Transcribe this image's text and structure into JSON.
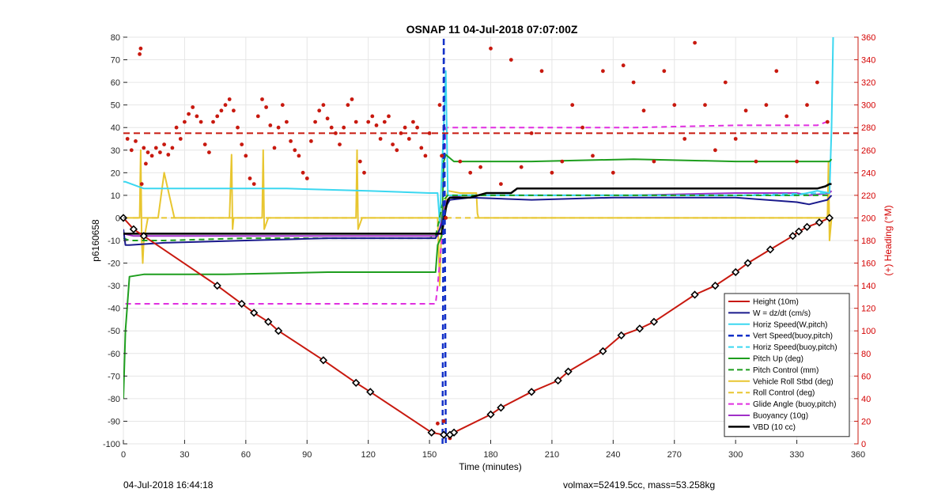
{
  "chart_data": {
    "type": "line",
    "title": "OSNAP 11 04-Jul-2018 07:07:00Z",
    "xlabel": "Time (minutes)",
    "ylabel": "p6160658",
    "ylabel_right": "(+) Heading (°M)",
    "xlim": [
      0,
      360
    ],
    "ylim": [
      -100,
      80
    ],
    "ylim_right": [
      0,
      360
    ],
    "xticks": [
      0,
      30,
      60,
      90,
      120,
      150,
      180,
      210,
      240,
      270,
      300,
      330,
      360
    ],
    "yticks": [
      -100,
      -90,
      -80,
      -70,
      -60,
      -50,
      -40,
      -30,
      -20,
      -10,
      0,
      10,
      20,
      30,
      40,
      50,
      60,
      70,
      80
    ],
    "yticks_right": [
      0,
      20,
      40,
      60,
      80,
      100,
      120,
      140,
      160,
      180,
      200,
      220,
      240,
      260,
      280,
      300,
      320,
      340,
      360
    ],
    "grid": true,
    "legend_position": "bottom-right",
    "footer_left": "04-Jul-2018 16:44:18",
    "footer_right": "volmax=52419.5cc, mass=53.258kg",
    "colors": {
      "red": "#c8190f",
      "navy": "#1a1a8c",
      "cyan": "#3bd7f0",
      "blue": "#1432c8",
      "green": "#1e9e1e",
      "yellow": "#e8c630",
      "magenta": "#e02fe0",
      "purple": "#a030c8",
      "black": "#000000",
      "heading": "#c8190f"
    },
    "series": [
      {
        "name": "Height (10m)",
        "color": "red",
        "dash": "solid",
        "width": 2,
        "x": [
          0,
          5,
          10,
          46,
          58,
          64,
          71,
          76,
          98,
          114,
          121,
          151,
          157,
          160,
          162,
          180,
          185,
          200,
          213,
          218,
          235,
          244,
          253,
          260,
          280,
          290,
          300,
          306,
          317,
          328,
          331,
          335,
          341,
          346
        ],
        "y": [
          0,
          -5,
          -8,
          -30,
          -38,
          -42,
          -46,
          -50,
          -63,
          -73,
          -77,
          -95,
          -96,
          -96,
          -95,
          -87,
          -84,
          -77,
          -72,
          -68,
          -59,
          -52,
          -49,
          -46,
          -34,
          -30,
          -24,
          -20,
          -14,
          -8,
          -6,
          -4,
          -2,
          0
        ]
      },
      {
        "name": "W = dz/dt (cm/s)",
        "color": "navy",
        "dash": "solid",
        "width": 2,
        "x": [
          0,
          1,
          3,
          20,
          60,
          100,
          140,
          153,
          156,
          158,
          160,
          170,
          200,
          240,
          300,
          330,
          336,
          345,
          347
        ],
        "y": [
          -5,
          -12,
          -12,
          -11,
          -10,
          -9,
          -9,
          -9,
          -3,
          5,
          8,
          9,
          8,
          9,
          9,
          7,
          6,
          8,
          10
        ]
      },
      {
        "name": "Horiz Speed(W,pitch)",
        "color": "cyan",
        "dash": "solid",
        "width": 2,
        "x": [
          0,
          1,
          10,
          40,
          80,
          120,
          150,
          154,
          155,
          157,
          158,
          159,
          162,
          200,
          260,
          330,
          340,
          346,
          347,
          347.8
        ],
        "y": [
          16,
          16,
          13,
          13,
          13,
          12,
          11,
          11,
          -2,
          40,
          65,
          10,
          10,
          10,
          10,
          10,
          12,
          11,
          40,
          80
        ]
      },
      {
        "name": "Vert Speed(buoy,pitch)",
        "color": "blue",
        "dash": "dash",
        "width": 2.5,
        "x": [
          156.4,
          156.8,
          157,
          157.4,
          158
        ],
        "y": [
          -100,
          0,
          80,
          20,
          -100
        ]
      },
      {
        "name": "Horiz Speed(buoy,pitch)",
        "color": "cyan",
        "dash": "dash",
        "width": 2,
        "x": [
          160,
          200,
          250,
          300,
          346
        ],
        "y": [
          10,
          10,
          10,
          10,
          11
        ]
      },
      {
        "name": "Pitch Up (deg)",
        "color": "green",
        "dash": "solid",
        "width": 2,
        "x": [
          0,
          1,
          3,
          10,
          50,
          100,
          150,
          153,
          154,
          156,
          157,
          158,
          162,
          170,
          200,
          250,
          300,
          346,
          347
        ],
        "y": [
          -80,
          -50,
          -26,
          -25,
          -25,
          -24,
          -24,
          -24,
          -12,
          -8,
          25,
          28,
          25,
          25,
          25,
          26,
          25,
          25,
          26
        ]
      },
      {
        "name": "Pitch Control (mm)",
        "color": "green",
        "dash": "dash",
        "width": 2,
        "x": [
          0,
          3,
          20,
          60,
          100,
          150,
          153,
          155,
          156,
          157,
          159,
          200,
          260,
          330,
          346
        ],
        "y": [
          -9,
          -10,
          -10,
          -9,
          -9,
          -9,
          -8,
          0,
          5,
          8,
          10,
          10,
          10,
          10,
          10
        ]
      },
      {
        "name": "Vehicle Roll Stbd (deg)",
        "color": "yellow",
        "dash": "solid",
        "width": 2,
        "x": [
          0,
          8,
          8.5,
          9,
          9.5,
          10,
          12,
          17,
          20,
          25,
          30,
          40,
          52,
          53,
          53.5,
          54,
          56,
          60,
          68,
          68.5,
          69,
          71,
          75,
          100,
          110,
          114,
          114.5,
          115,
          117,
          120,
          150,
          154,
          155,
          156,
          159,
          165,
          170,
          173,
          173.5,
          174,
          200,
          220,
          330,
          345,
          345.5,
          346,
          347
        ],
        "y": [
          0,
          0,
          30,
          -10,
          -20,
          -10,
          0,
          0,
          20,
          0,
          0,
          0,
          0,
          28,
          -5,
          0,
          0,
          0,
          0,
          30,
          -5,
          0,
          0,
          0,
          0,
          0,
          30,
          -5,
          0,
          0,
          0,
          0,
          -30,
          0,
          12,
          11,
          11,
          11,
          2,
          0,
          0,
          0,
          0,
          0,
          25,
          -10,
          0
        ]
      },
      {
        "name": "Roll Control (deg)",
        "color": "yellow",
        "dash": "dash",
        "width": 2,
        "x": [
          0,
          10,
          30,
          60,
          100,
          150,
          160,
          190,
          220,
          260,
          300,
          340,
          346
        ],
        "y": [
          0,
          0,
          0,
          0,
          0,
          0,
          0,
          0,
          0,
          0,
          0,
          0,
          0
        ]
      },
      {
        "name": "Glide Angle (buoy,pitch)",
        "color": "magenta",
        "dash": "dash",
        "width": 2,
        "x": [
          1,
          10,
          50,
          100,
          150,
          153,
          154,
          156,
          158,
          160,
          200,
          250,
          300,
          340,
          346
        ],
        "y": [
          -38,
          -38,
          -38,
          -38,
          -38,
          -38,
          -30,
          -10,
          40,
          40,
          40,
          40,
          41,
          41,
          43
        ]
      },
      {
        "name": "Buoyancy (10g)",
        "color": "purple",
        "dash": "solid",
        "width": 2,
        "x": [
          0,
          5,
          10,
          30,
          60,
          100,
          150,
          154,
          155,
          156,
          157,
          158,
          160,
          166,
          170,
          200,
          250,
          300,
          330,
          336,
          346,
          347
        ],
        "y": [
          -7,
          -8,
          -8,
          -8,
          -8,
          -8,
          -8,
          -8,
          -5,
          0,
          5,
          7,
          9,
          10,
          10,
          10,
          10,
          11,
          11,
          10,
          11,
          12
        ]
      },
      {
        "name": "VBD (10 cc)",
        "color": "black",
        "dash": "solid",
        "width": 2.5,
        "x": [
          0,
          156,
          157,
          158,
          159,
          160,
          165,
          170,
          178,
          190,
          193,
          230,
          300,
          340,
          344,
          346,
          347
        ],
        "y": [
          -7,
          -7,
          -2,
          4,
          8,
          9,
          9,
          9,
          11,
          11,
          13,
          13,
          13,
          13,
          14,
          15,
          15
        ]
      }
    ],
    "heading_axis": "right",
    "heading_reference": 275,
    "heading_points_x": [
      2,
      4,
      6,
      8,
      8.5,
      9,
      10,
      11,
      12,
      14,
      16,
      18,
      20,
      22,
      24,
      26,
      28,
      30,
      32,
      34,
      36,
      38,
      40,
      42,
      44,
      46,
      48,
      50,
      52,
      54,
      56,
      58,
      60,
      62,
      64,
      66,
      68,
      70,
      72,
      74,
      76,
      78,
      80,
      82,
      84,
      86,
      88,
      90,
      92,
      94,
      96,
      98,
      100,
      102,
      104,
      106,
      108,
      110,
      112,
      114,
      116,
      118,
      120,
      122,
      124,
      126,
      128,
      130,
      132,
      134,
      136,
      138,
      140,
      142,
      144,
      146,
      148,
      150,
      152,
      154,
      155,
      156,
      157,
      158,
      160,
      165,
      170,
      175,
      180,
      185,
      190,
      195,
      200,
      205,
      210,
      215,
      220,
      225,
      230,
      235,
      240,
      245,
      250,
      255,
      260,
      265,
      270,
      275,
      280,
      285,
      290,
      295,
      300,
      305,
      310,
      315,
      320,
      325,
      330,
      335,
      340,
      345
    ],
    "heading_points_y": [
      270,
      260,
      268,
      345,
      350,
      230,
      262,
      248,
      258,
      255,
      262,
      258,
      265,
      256,
      262,
      280,
      270,
      285,
      292,
      298,
      290,
      285,
      265,
      258,
      285,
      290,
      295,
      300,
      305,
      295,
      280,
      265,
      255,
      235,
      230,
      290,
      305,
      298,
      282,
      262,
      280,
      300,
      285,
      268,
      260,
      255,
      240,
      235,
      268,
      285,
      295,
      300,
      288,
      280,
      275,
      265,
      280,
      300,
      305,
      285,
      250,
      240,
      285,
      290,
      282,
      270,
      285,
      290,
      265,
      260,
      275,
      280,
      270,
      285,
      280,
      262,
      255,
      275,
      10,
      18,
      300,
      255,
      20,
      200,
      5,
      250,
      240,
      245,
      350,
      230,
      340,
      245,
      275,
      330,
      240,
      250,
      300,
      280,
      255,
      330,
      240,
      335,
      320,
      295,
      250,
      330,
      300,
      270,
      355,
      300,
      260,
      320,
      270,
      295,
      250,
      300,
      330,
      290,
      250,
      300,
      320,
      285
    ]
  }
}
